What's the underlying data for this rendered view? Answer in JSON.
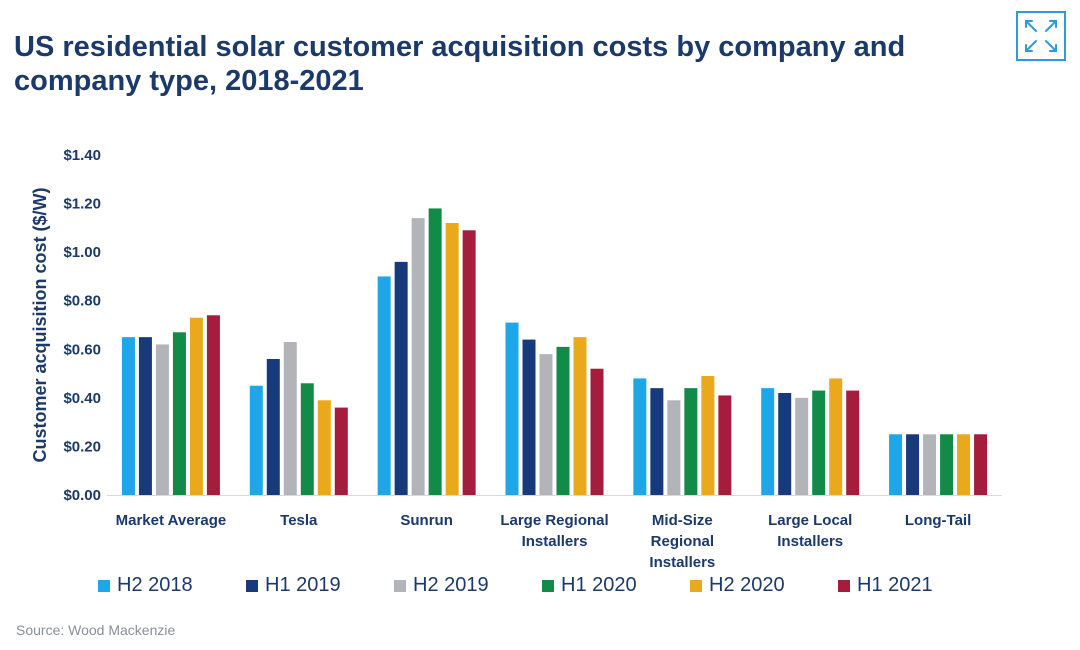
{
  "header": {
    "title": "US residential solar customer acquisition costs by company and company type, 2018-2021",
    "expand_icon": "expand-arrows-icon"
  },
  "colors": {
    "title": "#1b3a6b",
    "axis_text": "#1b3a6b",
    "accent": "#2f9ad9"
  },
  "chart_data": {
    "type": "bar",
    "title": "US residential solar customer acquisition costs by company and company type, 2018-2021",
    "xlabel": "",
    "ylabel": "Customer acquisition cost ($/W)",
    "ylim": [
      0,
      1.4
    ],
    "yticks": [
      0,
      0.2,
      0.4,
      0.6,
      0.8,
      1.0,
      1.2,
      1.4
    ],
    "ytick_labels": [
      "$0.00",
      "$0.20",
      "$0.40",
      "$0.60",
      "$0.80",
      "$1.00",
      "$1.20",
      "$1.40"
    ],
    "grid": false,
    "legend_position": "bottom",
    "categories": [
      [
        "Market Average"
      ],
      [
        "Tesla"
      ],
      [
        "Sunrun"
      ],
      [
        "Large Regional",
        "Installers"
      ],
      [
        "Mid-Size",
        "Regional",
        "Installers"
      ],
      [
        "Large Local",
        "Installers"
      ],
      [
        "Long-Tail"
      ]
    ],
    "series": [
      {
        "name": "H2 2018",
        "color": "#1ea7e8",
        "values": [
          0.65,
          0.45,
          0.9,
          0.71,
          0.48,
          0.44,
          0.25
        ]
      },
      {
        "name": "H1 2019",
        "color": "#173a7c",
        "values": [
          0.65,
          0.56,
          0.96,
          0.64,
          0.44,
          0.42,
          0.25
        ]
      },
      {
        "name": "H2 2019",
        "color": "#b2b4b8",
        "values": [
          0.62,
          0.63,
          1.14,
          0.58,
          0.39,
          0.4,
          0.25
        ]
      },
      {
        "name": "H1 2020",
        "color": "#138b48",
        "values": [
          0.67,
          0.46,
          1.18,
          0.61,
          0.44,
          0.43,
          0.25
        ]
      },
      {
        "name": "H2 2020",
        "color": "#eaa91c",
        "values": [
          0.73,
          0.39,
          1.12,
          0.65,
          0.49,
          0.48,
          0.25
        ]
      },
      {
        "name": "H1 2021",
        "color": "#a51c3c",
        "values": [
          0.74,
          0.36,
          1.09,
          0.52,
          0.41,
          0.43,
          0.25
        ]
      }
    ]
  },
  "footer": {
    "source": "Source: Wood Mackenzie"
  }
}
